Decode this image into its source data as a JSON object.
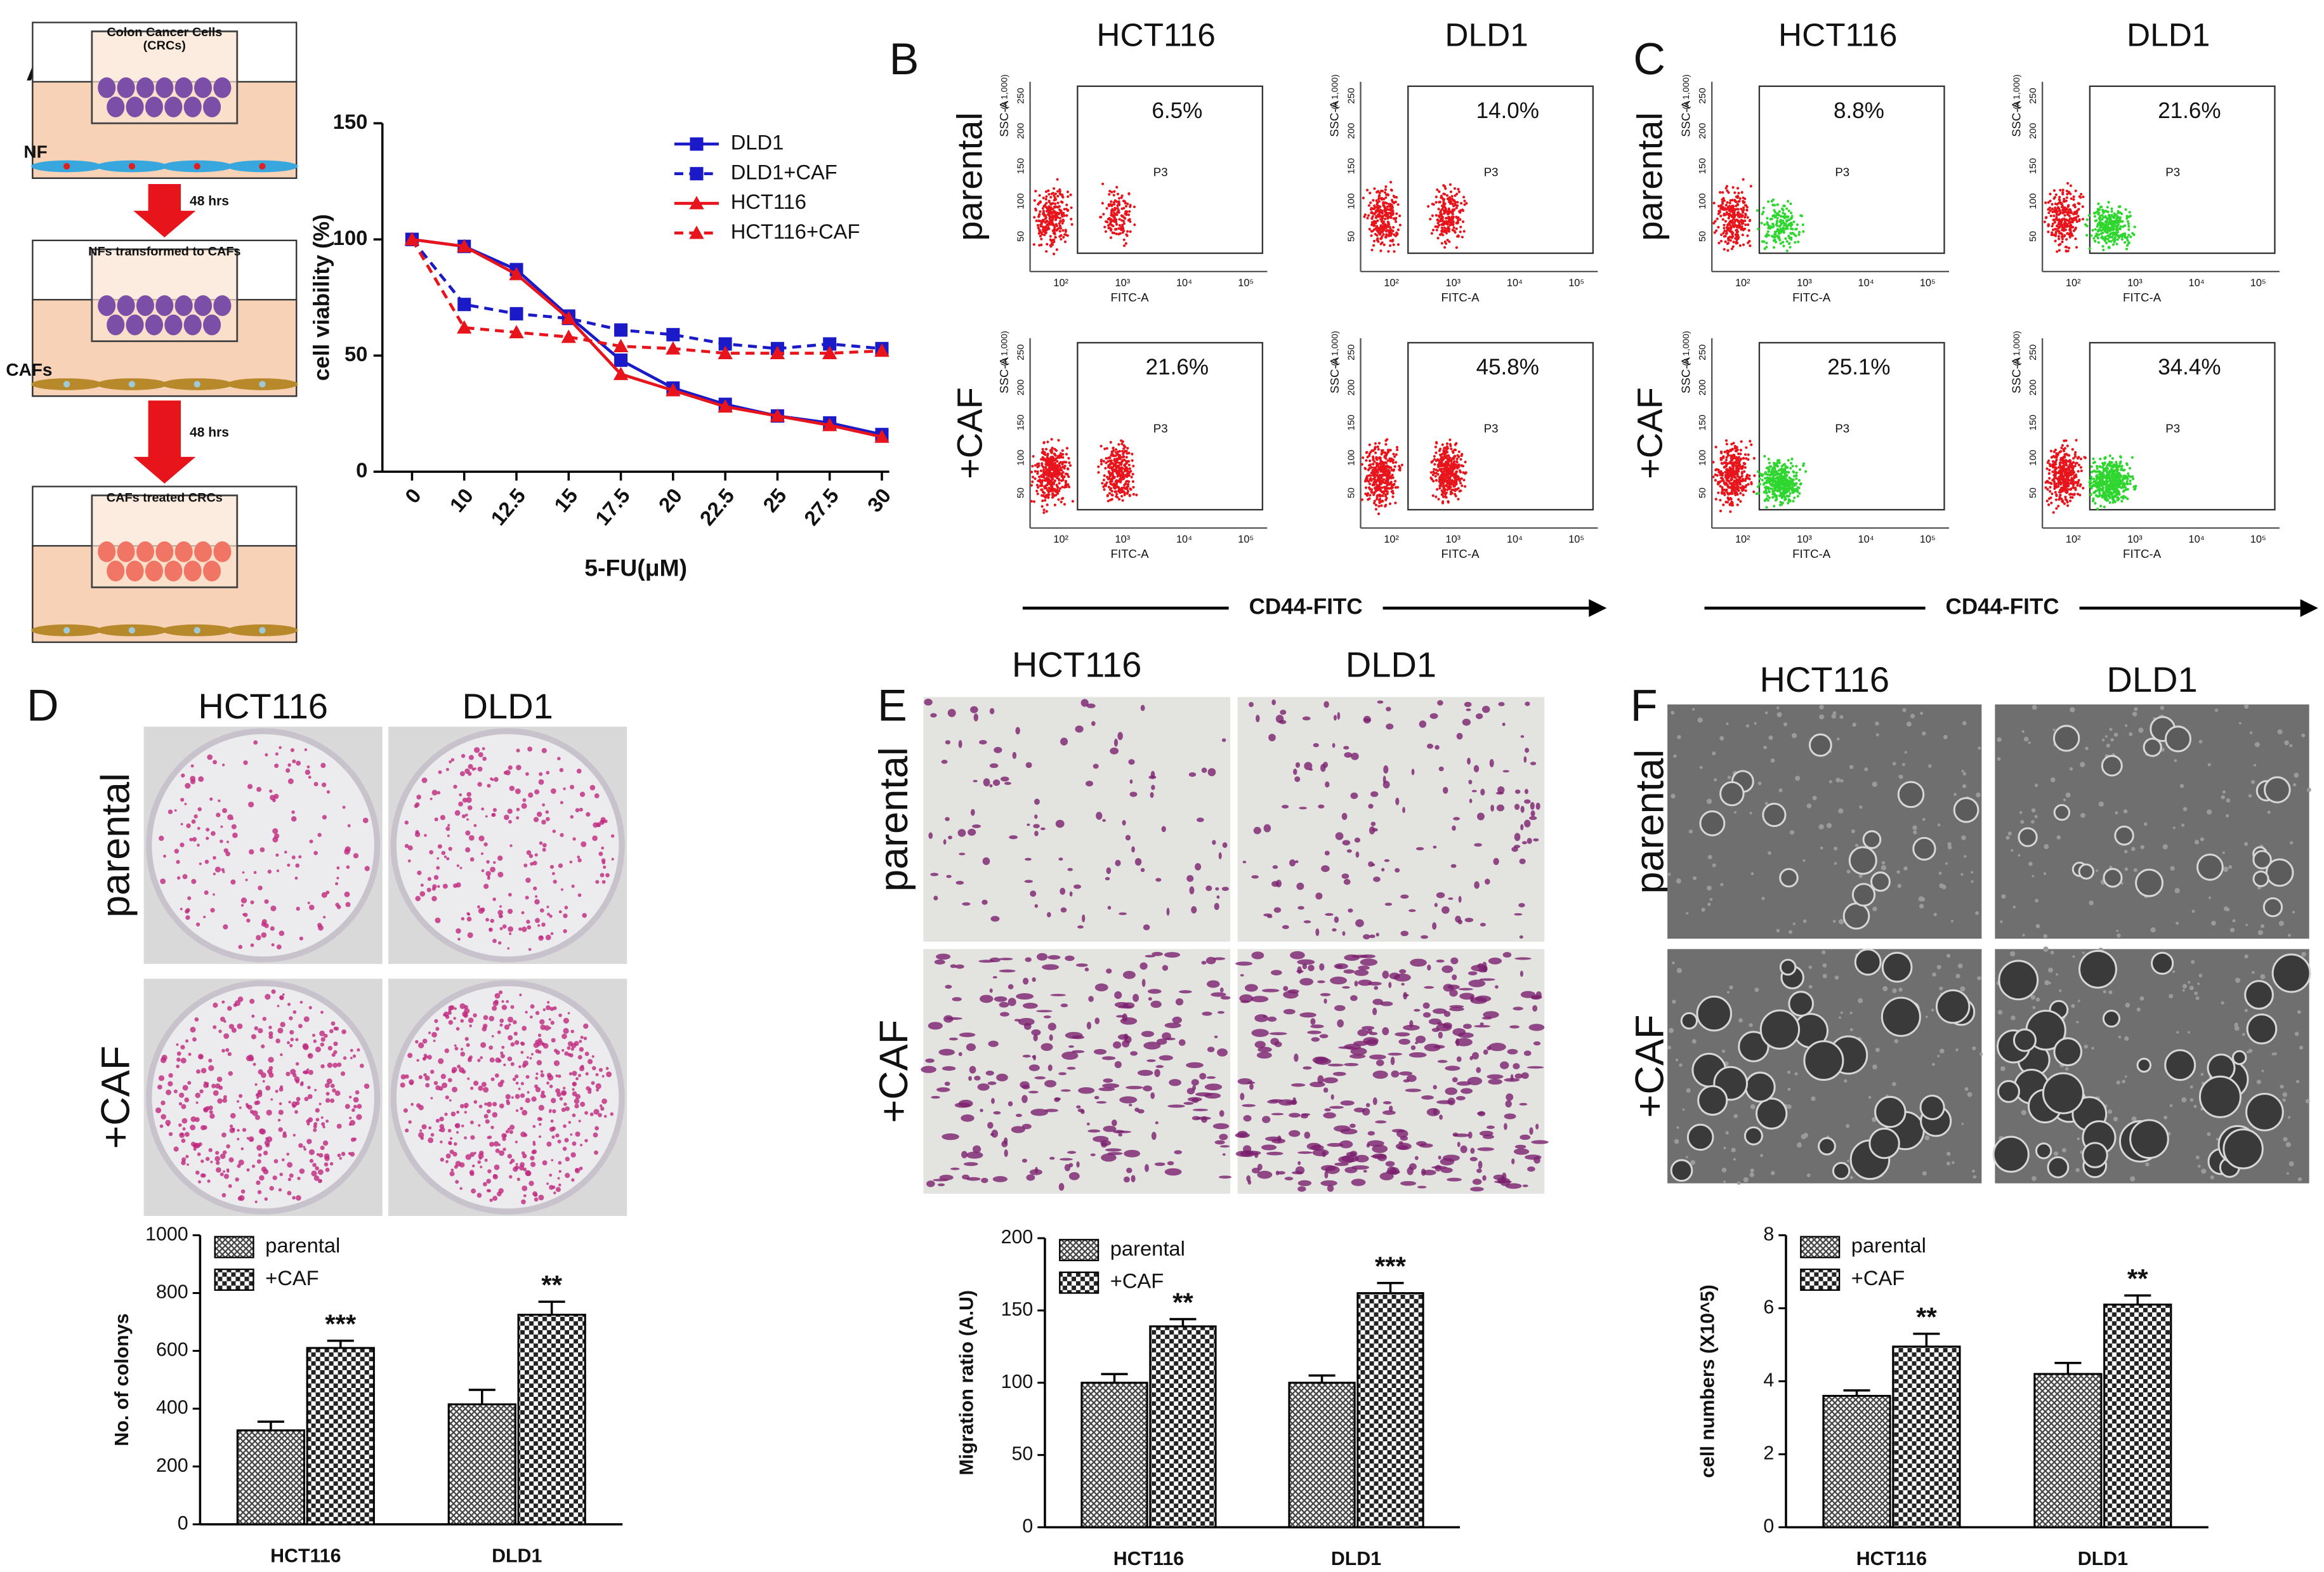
{
  "panel_labels": [
    "A",
    "B",
    "C",
    "D",
    "E",
    "F"
  ],
  "schematic": {
    "cells_label_1": "Colon Cancer Cells",
    "cells_label_2": "(CRCs)",
    "nf": "NF",
    "step1": "48 hrs",
    "transformed": "NFs transformed to CAFs",
    "cafs": "CAFs",
    "step2": "48 hrs",
    "treated": "CAFs treated CRCs"
  },
  "flow": [
    {
      "columns": [
        "HCT116",
        "DLD1"
      ],
      "rows": [
        "parental",
        "+CAF"
      ],
      "percents": [
        [
          "6.5%",
          "14.0%"
        ],
        [
          "21.6%",
          "45.8%"
        ]
      ],
      "gate": "P3",
      "y_axis": "SSC-A",
      "y_unit": "(x 1,000)",
      "x_axis": "FITC-A",
      "yticks": [
        "50",
        "100",
        "150",
        "200",
        "250"
      ],
      "xticks": [
        "10²",
        "10³",
        "10⁴",
        "10⁵"
      ],
      "marker": "CD44-FITC"
    },
    {
      "columns": [
        "HCT116",
        "DLD1"
      ],
      "rows": [
        "parental",
        "+CAF"
      ],
      "percents": [
        [
          "8.8%",
          "21.6%"
        ],
        [
          "25.1%",
          "34.4%"
        ]
      ],
      "gate": "P3",
      "y_axis": "SSC-A",
      "y_unit": "(x 1,000)",
      "x_axis": "FITC-A",
      "yticks": [
        "50",
        "100",
        "150",
        "200",
        "250"
      ],
      "xticks": [
        "10²",
        "10³",
        "10⁴",
        "10⁵"
      ],
      "marker": "CD44-FITC"
    }
  ],
  "photos": [
    {
      "columns": [
        "HCT116",
        "DLD1"
      ],
      "rows": [
        "parental",
        "+CAF"
      ]
    },
    {
      "columns": [
        "HCT116",
        "DLD1"
      ],
      "rows": [
        "parental",
        "+CAF"
      ]
    },
    {
      "columns": [
        "HCT116",
        "DLD1"
      ],
      "rows": [
        "parental",
        "+CAF"
      ]
    }
  ],
  "chart_data": [
    {
      "type": "line",
      "xlabel": "5-FU(μM)",
      "ylabel": "cell viability (%)",
      "categories": [
        "0",
        "10",
        "12.5",
        "15",
        "17.5",
        "20",
        "22.5",
        "25",
        "27.5",
        "30"
      ],
      "ylim": [
        0,
        150
      ],
      "yticks": [
        0,
        50,
        100,
        150
      ],
      "legend": "upper right",
      "series": [
        {
          "name": "DLD1",
          "color": "#1a1ac8",
          "marker": "square",
          "dashed": false,
          "values": [
            100,
            97,
            87,
            67,
            48,
            36,
            29,
            24,
            21,
            16
          ]
        },
        {
          "name": "DLD1+CAF",
          "color": "#1a1ac8",
          "marker": "square",
          "dashed": true,
          "values": [
            100,
            72,
            68,
            66,
            61,
            59,
            55,
            53,
            55,
            53
          ]
        },
        {
          "name": "HCT116",
          "color": "#e8141c",
          "marker": "triangle",
          "dashed": false,
          "values": [
            100,
            97,
            85,
            66,
            42,
            35,
            28,
            24,
            20,
            15
          ]
        },
        {
          "name": "HCT116+CAF",
          "color": "#e8141c",
          "marker": "triangle",
          "dashed": true,
          "values": [
            100,
            62,
            60,
            58,
            54,
            53,
            51,
            51,
            51,
            52
          ]
        }
      ]
    },
    {
      "type": "bar",
      "ylabel": "No. of colonys",
      "categories": [
        "HCT116",
        "DLD1"
      ],
      "ylim": [
        0,
        1000
      ],
      "yticks": [
        0,
        200,
        400,
        600,
        800,
        1000
      ],
      "legend": "upper left",
      "annotations": [
        "***",
        "**"
      ],
      "series": [
        {
          "name": "parental",
          "color": "#444444",
          "values": [
            325,
            415
          ],
          "errors": [
            30,
            50
          ]
        },
        {
          "name": "+CAF",
          "color": "#222222",
          "values": [
            610,
            725
          ],
          "errors": [
            25,
            45
          ]
        }
      ]
    },
    {
      "type": "bar",
      "ylabel": "Migration ratio (A.U)",
      "categories": [
        "HCT116",
        "DLD1"
      ],
      "ylim": [
        0,
        200
      ],
      "yticks": [
        0,
        50,
        100,
        150,
        200
      ],
      "legend": "upper left",
      "annotations": [
        "**",
        "***"
      ],
      "series": [
        {
          "name": "parental",
          "color": "#444444",
          "values": [
            100,
            100
          ],
          "errors": [
            6,
            5
          ]
        },
        {
          "name": "+CAF",
          "color": "#222222",
          "values": [
            139,
            162
          ],
          "errors": [
            5,
            7
          ]
        }
      ]
    },
    {
      "type": "bar",
      "ylabel": "cell numbers (X10^5)",
      "categories": [
        "HCT116",
        "DLD1"
      ],
      "ylim": [
        0,
        8
      ],
      "yticks": [
        0,
        2,
        4,
        6,
        8
      ],
      "legend": "upper left",
      "annotations": [
        "**",
        "**"
      ],
      "series": [
        {
          "name": "parental",
          "color": "#444444",
          "values": [
            3.6,
            4.2
          ],
          "errors": [
            0.15,
            0.3
          ]
        },
        {
          "name": "+CAF",
          "color": "#222222",
          "values": [
            4.95,
            6.1
          ],
          "errors": [
            0.35,
            0.25
          ]
        }
      ]
    }
  ]
}
